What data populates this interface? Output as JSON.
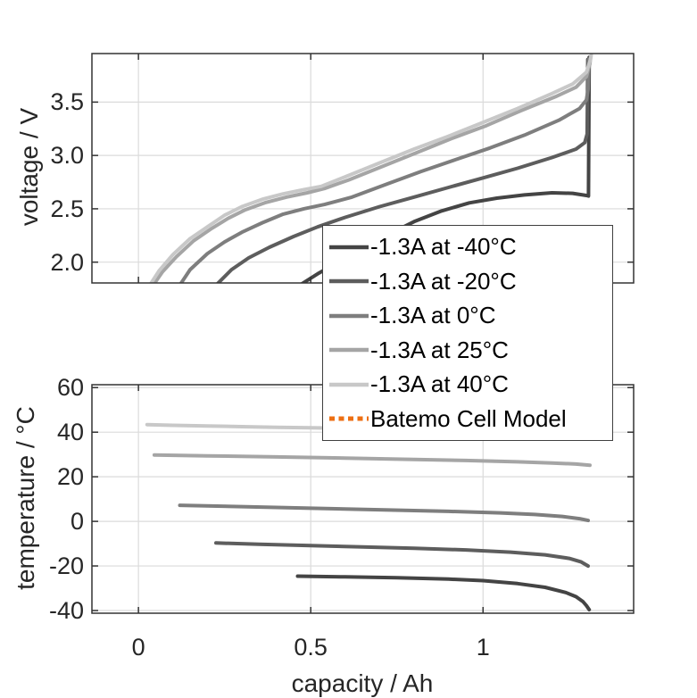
{
  "figure": {
    "background": "#ffffff",
    "grid_color": "#dbdbdb",
    "axis_color": "#333333",
    "tick_text_color": "#262626"
  },
  "legend": {
    "entries": [
      {
        "label": "-1.3A at -40°C",
        "color": "#444444",
        "style": "solid"
      },
      {
        "label": "-1.3A at -20°C",
        "color": "#5d5d5d",
        "style": "solid"
      },
      {
        "label": "-1.3A at 0°C",
        "color": "#7e7e7e",
        "style": "solid"
      },
      {
        "label": "-1.3A at 25°C",
        "color": "#a5a5a5",
        "style": "solid"
      },
      {
        "label": "-1.3A at 40°C",
        "color": "#c8c8c8",
        "style": "solid"
      },
      {
        "label": "Batemo Cell Model",
        "color": "#ed6f13",
        "style": "dotted"
      }
    ]
  },
  "chart_data": [
    {
      "id": "voltage-plot",
      "type": "line",
      "title": "",
      "xlabel": "",
      "ylabel": "voltage / V",
      "xlim": [
        -0.135,
        1.437
      ],
      "ylim": [
        1.805,
        3.955
      ],
      "grid": true,
      "xticks": [
        {
          "v": 0,
          "label": ""
        },
        {
          "v": 0.5,
          "label": ""
        },
        {
          "v": 1,
          "label": ""
        }
      ],
      "yticks": [
        {
          "v": 2.0,
          "label": "2.0"
        },
        {
          "v": 2.5,
          "label": "2.5"
        },
        {
          "v": 3.0,
          "label": "3.0"
        },
        {
          "v": 3.5,
          "label": "3.5"
        }
      ],
      "series": [
        {
          "name": "-1.3A at -40°C",
          "color": "#444444",
          "width": 4,
          "points": [
            [
              0.466,
              1.78
            ],
            [
              0.52,
              1.89
            ],
            [
              0.58,
              2.0
            ],
            [
              0.65,
              2.12
            ],
            [
              0.72,
              2.25
            ],
            [
              0.8,
              2.38
            ],
            [
              0.88,
              2.48
            ],
            [
              0.96,
              2.555
            ],
            [
              1.04,
              2.6
            ],
            [
              1.12,
              2.63
            ],
            [
              1.2,
              2.65
            ],
            [
              1.26,
              2.645
            ],
            [
              1.3,
              2.625
            ],
            [
              1.306,
              2.62
            ],
            [
              1.308,
              3.92
            ]
          ]
        },
        {
          "name": "-1.3A at -20°C",
          "color": "#5d5d5d",
          "width": 4,
          "points": [
            [
              0.224,
              1.78
            ],
            [
              0.27,
              1.93
            ],
            [
              0.32,
              2.04
            ],
            [
              0.38,
              2.14
            ],
            [
              0.45,
              2.24
            ],
            [
              0.52,
              2.33
            ],
            [
              0.6,
              2.42
            ],
            [
              0.7,
              2.52
            ],
            [
              0.8,
              2.61
            ],
            [
              0.9,
              2.7
            ],
            [
              1.0,
              2.79
            ],
            [
              1.1,
              2.88
            ],
            [
              1.2,
              2.98
            ],
            [
              1.27,
              3.06
            ],
            [
              1.295,
              3.12
            ],
            [
              1.302,
              3.2
            ],
            [
              1.304,
              3.9
            ]
          ]
        },
        {
          "name": "-1.3A at 0°C",
          "color": "#7e7e7e",
          "width": 4,
          "points": [
            [
              0.119,
              1.78
            ],
            [
              0.15,
              1.93
            ],
            [
              0.2,
              2.08
            ],
            [
              0.25,
              2.19
            ],
            [
              0.3,
              2.28
            ],
            [
              0.36,
              2.37
            ],
            [
              0.42,
              2.45
            ],
            [
              0.48,
              2.5
            ],
            [
              0.54,
              2.54
            ],
            [
              0.62,
              2.61
            ],
            [
              0.72,
              2.73
            ],
            [
              0.82,
              2.85
            ],
            [
              0.92,
              2.96
            ],
            [
              1.02,
              3.07
            ],
            [
              1.12,
              3.19
            ],
            [
              1.22,
              3.33
            ],
            [
              1.28,
              3.44
            ],
            [
              1.3,
              3.52
            ],
            [
              1.305,
              3.62
            ],
            [
              1.307,
              3.9
            ]
          ]
        },
        {
          "name": "-1.3A at 25°C",
          "color": "#a5a5a5",
          "width": 4,
          "points": [
            [
              0.042,
              1.78
            ],
            [
              0.07,
              1.91
            ],
            [
              0.11,
              2.05
            ],
            [
              0.16,
              2.2
            ],
            [
              0.21,
              2.31
            ],
            [
              0.26,
              2.41
            ],
            [
              0.31,
              2.49
            ],
            [
              0.37,
              2.56
            ],
            [
              0.43,
              2.61
            ],
            [
              0.49,
              2.65
            ],
            [
              0.54,
              2.69
            ],
            [
              0.61,
              2.77
            ],
            [
              0.71,
              2.9
            ],
            [
              0.81,
              3.03
            ],
            [
              0.91,
              3.16
            ],
            [
              1.01,
              3.28
            ],
            [
              1.11,
              3.42
            ],
            [
              1.21,
              3.55
            ],
            [
              1.27,
              3.64
            ],
            [
              1.3,
              3.74
            ],
            [
              1.31,
              3.86
            ],
            [
              1.312,
              3.92
            ]
          ]
        },
        {
          "name": "-1.3A at 40°C",
          "color": "#c8c8c8",
          "width": 4,
          "points": [
            [
              0.032,
              1.78
            ],
            [
              0.06,
              1.92
            ],
            [
              0.1,
              2.07
            ],
            [
              0.15,
              2.22
            ],
            [
              0.2,
              2.33
            ],
            [
              0.25,
              2.44
            ],
            [
              0.3,
              2.52
            ],
            [
              0.36,
              2.59
            ],
            [
              0.42,
              2.64
            ],
            [
              0.48,
              2.68
            ],
            [
              0.53,
              2.71
            ],
            [
              0.6,
              2.8
            ],
            [
              0.7,
              2.93
            ],
            [
              0.8,
              3.06
            ],
            [
              0.9,
              3.18
            ],
            [
              1.0,
              3.31
            ],
            [
              1.1,
              3.44
            ],
            [
              1.2,
              3.58
            ],
            [
              1.26,
              3.67
            ],
            [
              1.3,
              3.78
            ],
            [
              1.312,
              3.9
            ],
            [
              1.314,
              3.94
            ]
          ]
        }
      ]
    },
    {
      "id": "temperature-plot",
      "type": "line",
      "title": "",
      "xlabel": "capacity / Ah",
      "ylabel": "temperature / °C",
      "xlim": [
        -0.135,
        1.437
      ],
      "ylim": [
        -41.2,
        61.3
      ],
      "grid": true,
      "xticks": [
        {
          "v": 0,
          "label": "0"
        },
        {
          "v": 0.5,
          "label": "0.5"
        },
        {
          "v": 1,
          "label": "1"
        }
      ],
      "yticks": [
        {
          "v": 60,
          "label": "60"
        },
        {
          "v": 40,
          "label": "40"
        },
        {
          "v": 20,
          "label": "20"
        },
        {
          "v": 0,
          "label": "0"
        },
        {
          "v": -20,
          "label": "-20"
        },
        {
          "v": -40,
          "label": "-40"
        }
      ],
      "series": [
        {
          "name": "-1.3A at -40°C",
          "color": "#444444",
          "width": 4,
          "points": [
            [
              0.462,
              -24.6
            ],
            [
              0.6,
              -24.9
            ],
            [
              0.75,
              -25.3
            ],
            [
              0.9,
              -25.9
            ],
            [
              1.0,
              -26.6
            ],
            [
              1.1,
              -27.9
            ],
            [
              1.18,
              -29.6
            ],
            [
              1.24,
              -31.9
            ],
            [
              1.27,
              -33.8
            ],
            [
              1.29,
              -36.0
            ],
            [
              1.3,
              -37.8
            ],
            [
              1.308,
              -39.6
            ]
          ]
        },
        {
          "name": "-1.3A at -20°C",
          "color": "#5d5d5d",
          "width": 4,
          "points": [
            [
              0.225,
              -9.7
            ],
            [
              0.35,
              -10.3
            ],
            [
              0.5,
              -10.9
            ],
            [
              0.65,
              -11.5
            ],
            [
              0.8,
              -12.1
            ],
            [
              0.95,
              -12.8
            ],
            [
              1.08,
              -13.8
            ],
            [
              1.18,
              -15.0
            ],
            [
              1.25,
              -16.6
            ],
            [
              1.285,
              -18.2
            ],
            [
              1.305,
              -20.0
            ]
          ]
        },
        {
          "name": "-1.3A at 0°C",
          "color": "#7e7e7e",
          "width": 4,
          "points": [
            [
              0.12,
              7.2
            ],
            [
              0.3,
              6.6
            ],
            [
              0.5,
              5.9
            ],
            [
              0.7,
              5.2
            ],
            [
              0.9,
              4.5
            ],
            [
              1.05,
              3.8
            ],
            [
              1.15,
              3.1
            ],
            [
              1.23,
              2.2
            ],
            [
              1.28,
              1.2
            ],
            [
              1.305,
              0.4
            ]
          ]
        },
        {
          "name": "-1.3A at 25°C",
          "color": "#a5a5a5",
          "width": 4,
          "points": [
            [
              0.046,
              29.8
            ],
            [
              0.2,
              29.4
            ],
            [
              0.4,
              28.9
            ],
            [
              0.6,
              28.4
            ],
            [
              0.8,
              27.8
            ],
            [
              0.95,
              27.3
            ],
            [
              1.1,
              26.7
            ],
            [
              1.2,
              26.2
            ],
            [
              1.27,
              25.7
            ],
            [
              1.31,
              25.2
            ]
          ]
        },
        {
          "name": "-1.3A at 40°C",
          "color": "#c8c8c8",
          "width": 4,
          "points": [
            [
              0.025,
              43.4
            ],
            [
              0.1,
              43.1
            ],
            [
              0.2,
              42.8
            ],
            [
              0.3,
              42.5
            ],
            [
              0.4,
              42.2
            ],
            [
              0.5,
              42.0
            ],
            [
              0.65,
              41.6
            ],
            [
              0.85,
              41.2
            ],
            [
              1.05,
              40.8
            ],
            [
              1.2,
              40.5
            ],
            [
              1.31,
              40.2
            ]
          ]
        }
      ]
    }
  ]
}
